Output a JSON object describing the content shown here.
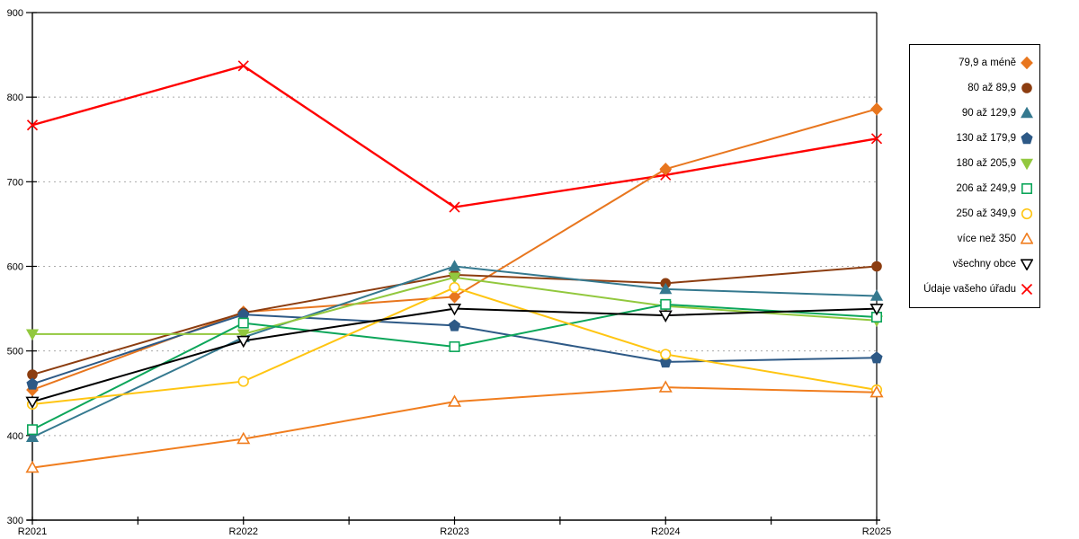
{
  "chart_data": {
    "type": "line",
    "title": "",
    "xlabel": "",
    "ylabel": "",
    "ylim": [
      300,
      900
    ],
    "yticks": [
      300,
      400,
      500,
      600,
      700,
      800,
      900
    ],
    "grid": "horizontal-dotted",
    "legend_position": "right-outside",
    "categories": [
      "R2021",
      "R2022",
      "R2023",
      "R2024",
      "R2025"
    ],
    "series": [
      {
        "name": "79,9 a méně",
        "marker": "diamond",
        "fill": "filled",
        "color": "#E8761E",
        "values": [
          454,
          546,
          564,
          715,
          786
        ]
      },
      {
        "name": "80 až 89,9",
        "marker": "circle",
        "fill": "filled",
        "color": "#8C3D10",
        "values": [
          472,
          545,
          590,
          580,
          600
        ]
      },
      {
        "name": "90 až 129,9",
        "marker": "triangle-up",
        "fill": "filled",
        "color": "#35798F",
        "values": [
          398,
          516,
          600,
          573,
          565
        ]
      },
      {
        "name": "130 až 179,9",
        "marker": "pentagon",
        "fill": "filled",
        "color": "#2D5986",
        "values": [
          461,
          543,
          530,
          487,
          492
        ]
      },
      {
        "name": "180 až 205,9",
        "marker": "triangle-down",
        "fill": "filled",
        "color": "#92C83E",
        "values": [
          520,
          520,
          587,
          553,
          536
        ]
      },
      {
        "name": "206 až 249,9",
        "marker": "square",
        "fill": "open",
        "color": "#0CA65A",
        "values": [
          407,
          533,
          505,
          555,
          540
        ]
      },
      {
        "name": "250 až 349,9",
        "marker": "circle",
        "fill": "open",
        "color": "#FFC512",
        "values": [
          437,
          464,
          575,
          496,
          454
        ]
      },
      {
        "name": "více než 350",
        "marker": "triangle-up",
        "fill": "open",
        "color": "#F07D1E",
        "values": [
          362,
          396,
          440,
          457,
          451
        ]
      },
      {
        "name": "všechny obce",
        "marker": "triangle-down",
        "fill": "open",
        "color": "#000000",
        "values": [
          440,
          512,
          550,
          542,
          550
        ]
      },
      {
        "name": "Údaje vašeho úřadu",
        "marker": "x",
        "fill": "open",
        "color": "#FF0000",
        "values": [
          767,
          837,
          670,
          708,
          751
        ]
      }
    ],
    "colors": {
      "axis": "#000000",
      "gridline": "#AAAAAA",
      "background": "#FFFFFF"
    }
  }
}
